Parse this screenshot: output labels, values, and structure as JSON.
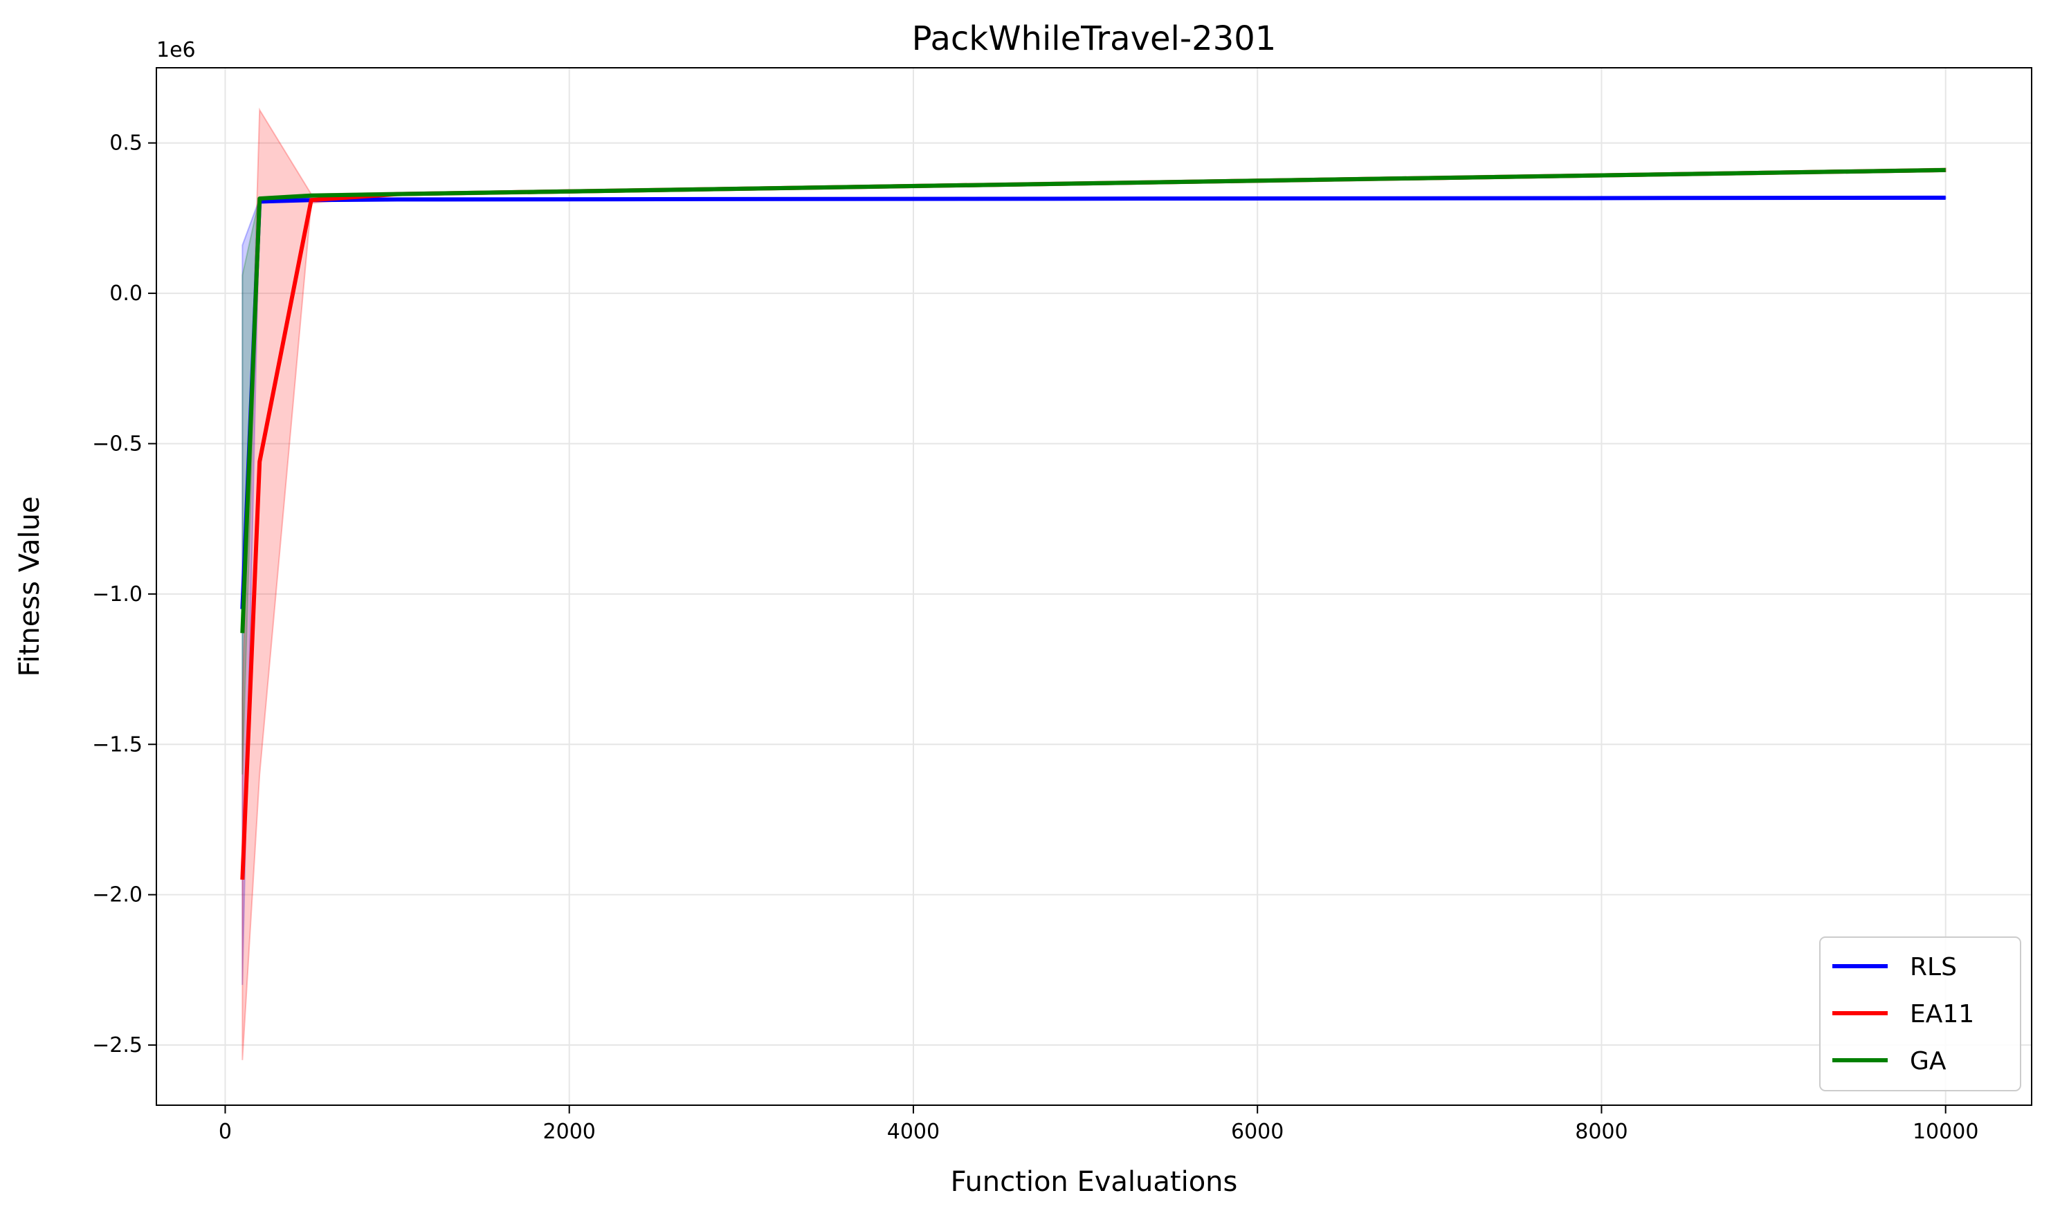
{
  "chart_data": {
    "type": "line",
    "title": "PackWhileTravel-2301",
    "xlabel": "Function Evaluations",
    "ylabel": "Fitness Value",
    "y_offset_label": "1e6",
    "xlim": [
      -400,
      10500
    ],
    "ylim": [
      -2.7,
      0.75
    ],
    "x_ticks": [
      0,
      2000,
      4000,
      6000,
      8000,
      10000
    ],
    "x_tick_labels": [
      "0",
      "2000",
      "4000",
      "6000",
      "8000",
      "10000"
    ],
    "y_ticks": [
      0.5,
      0.0,
      -0.5,
      -1.0,
      -1.5,
      -2.0,
      -2.5
    ],
    "y_tick_labels": [
      "0.5",
      "0.0",
      "−0.5",
      "−1.0",
      "−1.5",
      "−2.0",
      "−2.5"
    ],
    "grid": true,
    "legend_position": "lower-right",
    "series": [
      {
        "name": "RLS",
        "color": "#0000ff",
        "x": [
          100,
          200,
          500,
          1000,
          10000
        ],
        "y": [
          -1.05,
          0.305,
          0.31,
          0.312,
          0.318
        ],
        "band_lower": [
          -2.3,
          0.3,
          0.308,
          0.31,
          0.316
        ],
        "band_upper": [
          0.16,
          0.315,
          0.315,
          0.315,
          0.32
        ]
      },
      {
        "name": "EA11",
        "color": "#ff0000",
        "x": [
          100,
          200,
          500,
          1000,
          10000
        ],
        "y": [
          -1.95,
          -0.56,
          0.31,
          0.33,
          0.41
        ],
        "band_lower": [
          -2.55,
          -1.6,
          0.3,
          0.325,
          0.405
        ],
        "band_upper": [
          -1.35,
          0.61,
          0.33,
          0.335,
          0.415
        ]
      },
      {
        "name": "GA",
        "color": "#008000",
        "x": [
          100,
          200,
          500,
          1000,
          10000
        ],
        "y": [
          -1.13,
          0.315,
          0.325,
          0.33,
          0.41
        ],
        "band_lower": [
          -1.6,
          0.31,
          0.32,
          0.325,
          0.405
        ],
        "band_upper": [
          0.06,
          0.32,
          0.33,
          0.335,
          0.415
        ]
      }
    ]
  }
}
